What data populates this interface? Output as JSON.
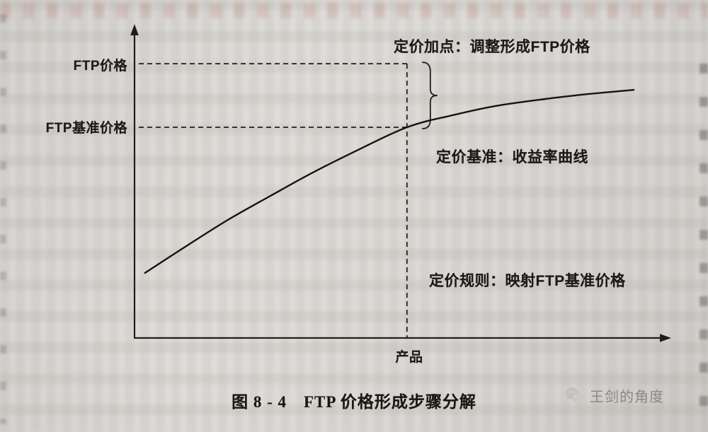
{
  "page": {
    "type": "book-scan-figure"
  },
  "labels": {
    "ftp_price": "FTP价格",
    "ftp_base_price": "FTP基准价格",
    "annotation_markup": "定价加点：调整形成FTP价格",
    "annotation_benchmark": "定价基准：收益率曲线",
    "annotation_rule": "定价规则：映射FTP基准价格",
    "x_tick_product": "产品"
  },
  "caption": "图 8 - 4　FTP 价格形成步骤分解",
  "watermark": {
    "icon": "wechat-bubbles-icon",
    "label": "王剑的角度",
    "color": "#8b8984"
  },
  "colors": {
    "ink": "#1f1e1c",
    "paper": "#d7d5d1"
  },
  "chart_data": {
    "type": "line",
    "title": "图 8 - 4　FTP 价格形成步骤分解",
    "xlabel": "",
    "ylabel": "",
    "grid": false,
    "legend": "none",
    "x_tick_labels": [
      "产品"
    ],
    "y_tick_labels": [
      "FTP价格",
      "FTP基准价格"
    ],
    "axis_ranges_note": "conceptual figure, axes unnumbered; values below are relative 0-1 positions",
    "series": [
      {
        "name": "收益率曲线（定价基准）",
        "x_rel": [
          0.02,
          0.095,
          0.176,
          0.257,
          0.338,
          0.419,
          0.52,
          0.608,
          0.689,
          0.784,
          0.865,
          0.953
        ],
        "y_rel": [
          0.214,
          0.298,
          0.386,
          0.465,
          0.542,
          0.612,
          0.693,
          0.733,
          0.763,
          0.786,
          0.802,
          0.816
        ]
      }
    ],
    "reference_lines": [
      {
        "axis": "y",
        "value_rel": 0.902,
        "style": "dashed",
        "label": "FTP价格"
      },
      {
        "axis": "y",
        "value_rel": 0.693,
        "style": "dashed",
        "label": "FTP基准价格"
      },
      {
        "axis": "x",
        "value_rel": 0.52,
        "style": "dashed",
        "label": "产品"
      }
    ],
    "annotations": [
      {
        "text": "定价加点：调整形成FTP价格",
        "layout": "top-right, with brace spanning gap between FTP价格 and FTP基准价格 levels"
      },
      {
        "text": "定价基准：收益率曲线",
        "layout": "just below the curve, middle-right"
      },
      {
        "text": "定价规则：映射FTP基准价格",
        "layout": "lower-right quadrant"
      }
    ]
  }
}
